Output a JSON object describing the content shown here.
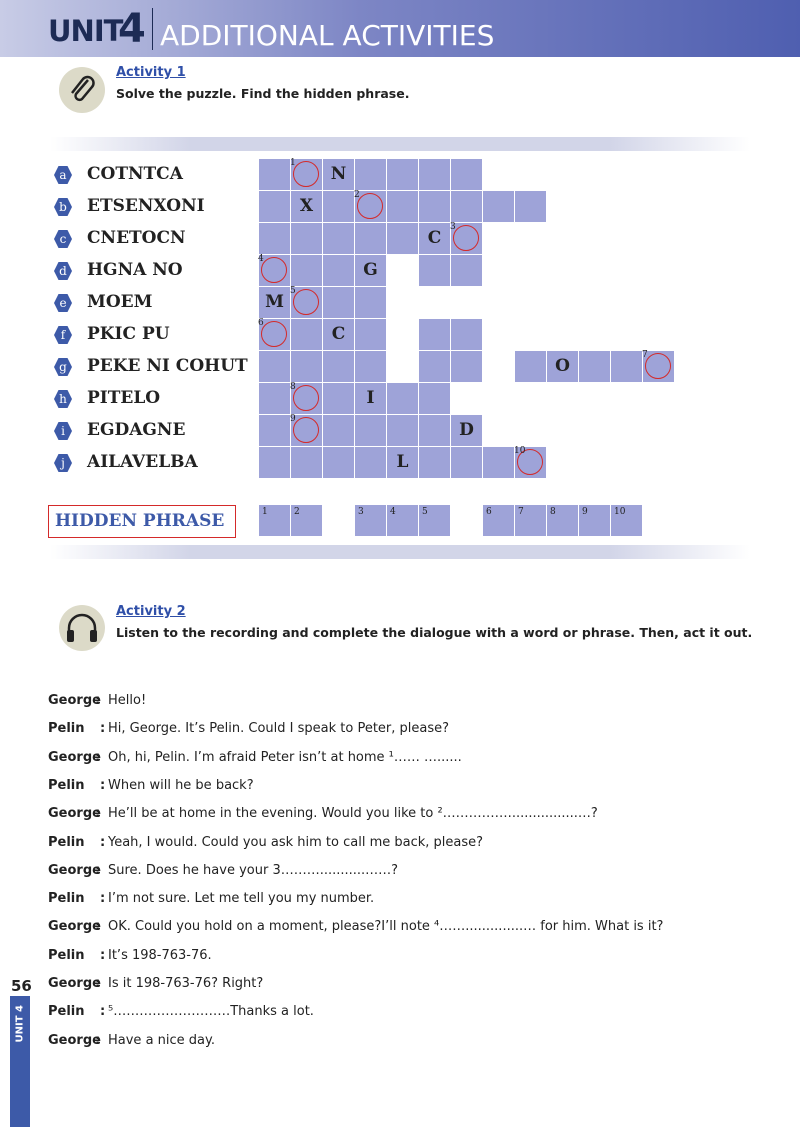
{
  "header": {
    "unit": "UNIT",
    "number": "4",
    "title": "ADDITIONAL ACTIVITIES"
  },
  "activity1": {
    "label": "Activity 1",
    "instruction": "Solve the puzzle. Find the hidden phrase.",
    "rows": [
      {
        "letter": "a",
        "word": "COTNTCA",
        "given": "N",
        "circle": "1"
      },
      {
        "letter": "b",
        "word": "ETSENXONI",
        "given": "X",
        "circle": "2"
      },
      {
        "letter": "c",
        "word": "CNETOCN",
        "given": "C",
        "circle": "3"
      },
      {
        "letter": "d",
        "word": "HGNA NO",
        "given": "G",
        "circle": "4"
      },
      {
        "letter": "e",
        "word": "MOEM",
        "given": "M",
        "circle": "5"
      },
      {
        "letter": "f",
        "word": "PKIC PU",
        "given": "C",
        "circle": "6"
      },
      {
        "letter": "g",
        "word": "PEKE NI COHUT",
        "given": "O",
        "circle": "7"
      },
      {
        "letter": "h",
        "word": "PITELO",
        "given": "I",
        "circle": "8"
      },
      {
        "letter": "i",
        "word": "EGDAGNE",
        "given": "D",
        "circle": "9"
      },
      {
        "letter": "j",
        "word": "AILAVELBA",
        "given": "L",
        "circle": "10"
      }
    ],
    "hidden_phrase": {
      "label": "HIDDEN PHRASE",
      "numbers": [
        "1",
        "2",
        "3",
        "4",
        "5",
        "6",
        "7",
        "8",
        "9",
        "10"
      ]
    }
  },
  "activity2": {
    "label": "Activity 2",
    "instruction": "Listen to the recording and complete the dialogue with a word or phrase. Then, act it out.",
    "separator": ":",
    "dialogue": [
      {
        "speaker": "George",
        "text": "Hello!"
      },
      {
        "speaker": "Pelin",
        "text": "Hi, George. It’s Pelin. Could I speak to Peter, please?"
      },
      {
        "speaker": "George",
        "text": "Oh, hi, Pelin. I’m afraid Peter isn’t at home ¹…… …......"
      },
      {
        "speaker": "Pelin",
        "text": "When will he be back?"
      },
      {
        "speaker": "George",
        "text": "He’ll be at home in the evening. Would you like to ²…………….................…?"
      },
      {
        "speaker": "Pelin",
        "text": "Yeah, I would. Could you ask him to call me back, please?"
      },
      {
        "speaker": "George",
        "text": "Sure. Does he have your 3………...........……?"
      },
      {
        "speaker": "Pelin",
        "text": "I’m not sure. Let me tell you my number."
      },
      {
        "speaker": "George",
        "text": "OK. Could you hold on a moment, please?I’ll note ⁴……..............… for him. What is it?"
      },
      {
        "speaker": "Pelin",
        "text": "It’s 198-763-76."
      },
      {
        "speaker": "George",
        "text": "Is it 198-763-76? Right?"
      },
      {
        "speaker": "Pelin",
        "text": "⁵………………………Thanks a lot."
      },
      {
        "speaker": "George",
        "text": "Have a nice day."
      }
    ]
  },
  "footer": {
    "page": "56",
    "side_label": "UNIT 4"
  }
}
